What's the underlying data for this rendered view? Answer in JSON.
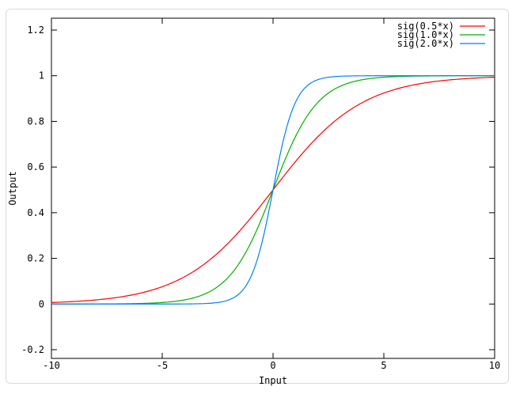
{
  "chart_data": {
    "type": "line",
    "title": "",
    "xlabel": "Input",
    "ylabel": "Output",
    "xlim": [
      -10,
      10
    ],
    "ylim": [
      -0.238,
      1.255
    ],
    "grid": false,
    "legend_position": "top-right-inside",
    "x_tick_values": [
      -10,
      -5,
      0,
      5,
      10
    ],
    "x_tick_labels": [
      "-10",
      "-5",
      "0",
      "5",
      "10"
    ],
    "y_tick_values": [
      -0.2,
      0,
      0.2,
      0.4,
      0.6,
      0.8,
      1,
      1.2
    ],
    "y_tick_labels": [
      "-0.2",
      "0",
      "0.2",
      "0.4",
      "0.6",
      "0.8",
      "1",
      "1.2"
    ],
    "frame_color": "#000000",
    "x": [
      -10,
      -9,
      -8,
      -7,
      -6,
      -5,
      -4,
      -3,
      -2,
      -1,
      0,
      1,
      2,
      3,
      4,
      5,
      6,
      7,
      8,
      9,
      10
    ],
    "series": [
      {
        "name": "sig(0.5*x)",
        "color": "#ff0000",
        "function": "logistic",
        "coefficient": 0.5,
        "values": [
          0.0067,
          0.011,
          0.018,
          0.0293,
          0.0474,
          0.0759,
          0.1192,
          0.1824,
          0.2689,
          0.3775,
          0.5,
          0.6225,
          0.7311,
          0.8176,
          0.8808,
          0.9241,
          0.9526,
          0.9707,
          0.982,
          0.989,
          0.9933
        ]
      },
      {
        "name": "sig(1.0*x)",
        "color": "#00b000",
        "function": "logistic",
        "coefficient": 1.0,
        "values": [
          0.0,
          0.0001,
          0.0003,
          0.0009,
          0.0025,
          0.0067,
          0.018,
          0.0474,
          0.1192,
          0.2689,
          0.5,
          0.7311,
          0.8808,
          0.9526,
          0.982,
          0.9933,
          0.9975,
          0.9991,
          0.9997,
          0.9999,
          1.0
        ]
      },
      {
        "name": "sig(2.0*x)",
        "color": "#0080ff",
        "function": "logistic",
        "coefficient": 2.0,
        "values": [
          0.0,
          0.0,
          0.0,
          0.0,
          0.0,
          0.0,
          0.0003,
          0.0025,
          0.018,
          0.1192,
          0.5,
          0.8808,
          0.982,
          0.9975,
          0.9997,
          1.0,
          1.0,
          1.0,
          1.0,
          1.0,
          1.0
        ]
      }
    ]
  }
}
